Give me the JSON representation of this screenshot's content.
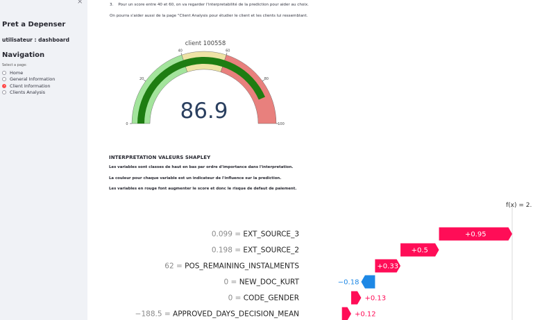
{
  "sidebar": {
    "close_glyph": "×",
    "title": "Pret a Depenser",
    "user": "utilisateur : dashboard",
    "nav_title": "Navigation",
    "select_label": "Select a page:",
    "items": [
      {
        "label": "Home",
        "selected": false
      },
      {
        "label": "General Information",
        "selected": false
      },
      {
        "label": "Client Information",
        "selected": true
      },
      {
        "label": "Clients Analysis",
        "selected": false
      }
    ],
    "accent_color": "#ff4b4b"
  },
  "main": {
    "step_number": "3.",
    "step_text": "Pour un score entre 40 et 60, on va regarder l'interpretabilité de la prediction pour aider au choix.",
    "aide_text": "On pourra s'aider aussi de la page \"Client Analysis pour étudier le client et les clients lui ressemblant.",
    "gauge": {
      "title": "client 100558",
      "value": 86.9,
      "value_text": "86.9",
      "min": 0,
      "max": 100,
      "ticks": [
        "0",
        "20",
        "40",
        "60",
        "80",
        "100"
      ],
      "ranges": [
        {
          "from": 0,
          "to": 40,
          "color": "#a3e49c"
        },
        {
          "from": 40,
          "to": 60,
          "color": "#eee3a5"
        },
        {
          "from": 60,
          "to": 100,
          "color": "#e8807d"
        }
      ],
      "bar_color": "#1e7d12"
    },
    "shap": {
      "title": "INTERPRETATION VALEURS SHAPLEY",
      "lines": [
        "Les variables sont classes de haut en bas par ordre d'importance dans l'interpretation.",
        "La couleur pour chaque variable est un indicateur de l'influence sur la prediction.",
        "Les variables en rouge font augmenter le score et donc le risque de defaut de paiement."
      ]
    }
  },
  "chart_data": {
    "type": "bar",
    "title": "",
    "fx_label": "f(x) = 2.",
    "positive_color": "#ff0d57",
    "negative_color": "#1e88e5",
    "features": [
      {
        "value": "0.099",
        "name": "EXT_SOURCE_3",
        "shap": 0.95,
        "label": "+0.95"
      },
      {
        "value": "0.198",
        "name": "EXT_SOURCE_2",
        "shap": 0.5,
        "label": "+0.5"
      },
      {
        "value": "62",
        "name": "POS_REMAINING_INSTALMENTS",
        "shap": 0.33,
        "label": "+0.33"
      },
      {
        "value": "0",
        "name": "NEW_DOC_KURT",
        "shap": -0.18,
        "label": "−0.18"
      },
      {
        "value": "0",
        "name": "CODE_GENDER",
        "shap": 0.13,
        "label": "+0.13"
      },
      {
        "value": "−188.5",
        "name": "APPROVED_DAYS_DECISION_MEAN",
        "shap": 0.12,
        "label": "+0.12"
      }
    ]
  }
}
